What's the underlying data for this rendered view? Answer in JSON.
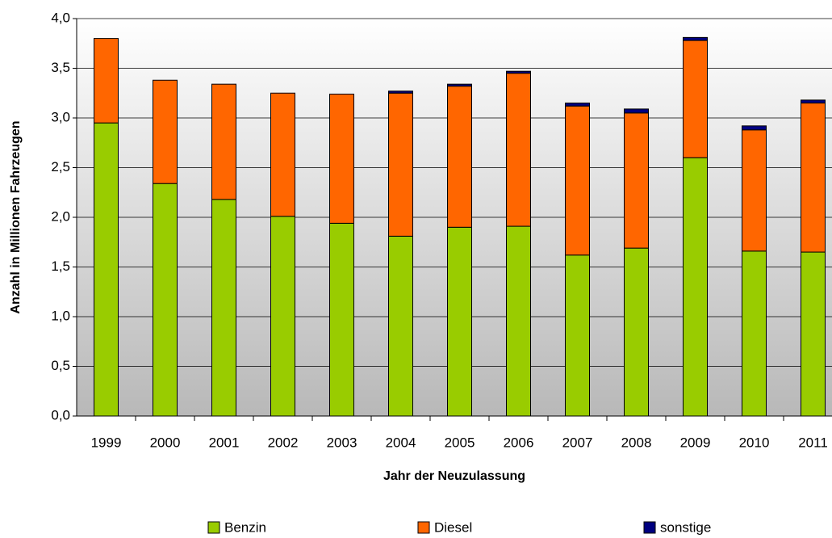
{
  "chart_data": {
    "type": "stacked_bar",
    "y_label": "Anzahl in Millionen Fahrzeugen",
    "x_label": "Jahr der Neuzulassung",
    "categories": [
      "1999",
      "2000",
      "2001",
      "2002",
      "2003",
      "2004",
      "2005",
      "2006",
      "2007",
      "2008",
      "2009",
      "2010",
      "2011"
    ],
    "series": [
      {
        "name": "Benzin",
        "color": "#99cc00",
        "values": [
          2.95,
          2.34,
          2.18,
          2.01,
          1.94,
          1.81,
          1.9,
          1.91,
          1.62,
          1.69,
          2.6,
          1.66,
          1.65
        ]
      },
      {
        "name": "Diesel",
        "color": "#ff6600",
        "values": [
          0.85,
          1.04,
          1.16,
          1.24,
          1.3,
          1.44,
          1.42,
          1.54,
          1.5,
          1.36,
          1.18,
          1.22,
          1.5
        ]
      },
      {
        "name": "sonstige",
        "color": "#000080",
        "values": [
          0,
          0,
          0,
          0,
          0,
          0.02,
          0.02,
          0.02,
          0.03,
          0.04,
          0.03,
          0.04,
          0.03
        ]
      }
    ],
    "ylim": [
      0,
      4
    ],
    "yticks": [
      {
        "value": 0,
        "label": "0,0"
      },
      {
        "value": 0.5,
        "label": "0,5"
      },
      {
        "value": 1,
        "label": "1,0"
      },
      {
        "value": 1.5,
        "label": "1,5"
      },
      {
        "value": 2,
        "label": "2,0"
      },
      {
        "value": 2.5,
        "label": "2,5"
      },
      {
        "value": 3,
        "label": "3,0"
      },
      {
        "value": 3.5,
        "label": "3,5"
      },
      {
        "value": 4,
        "label": "4,0"
      }
    ],
    "grid": true
  }
}
